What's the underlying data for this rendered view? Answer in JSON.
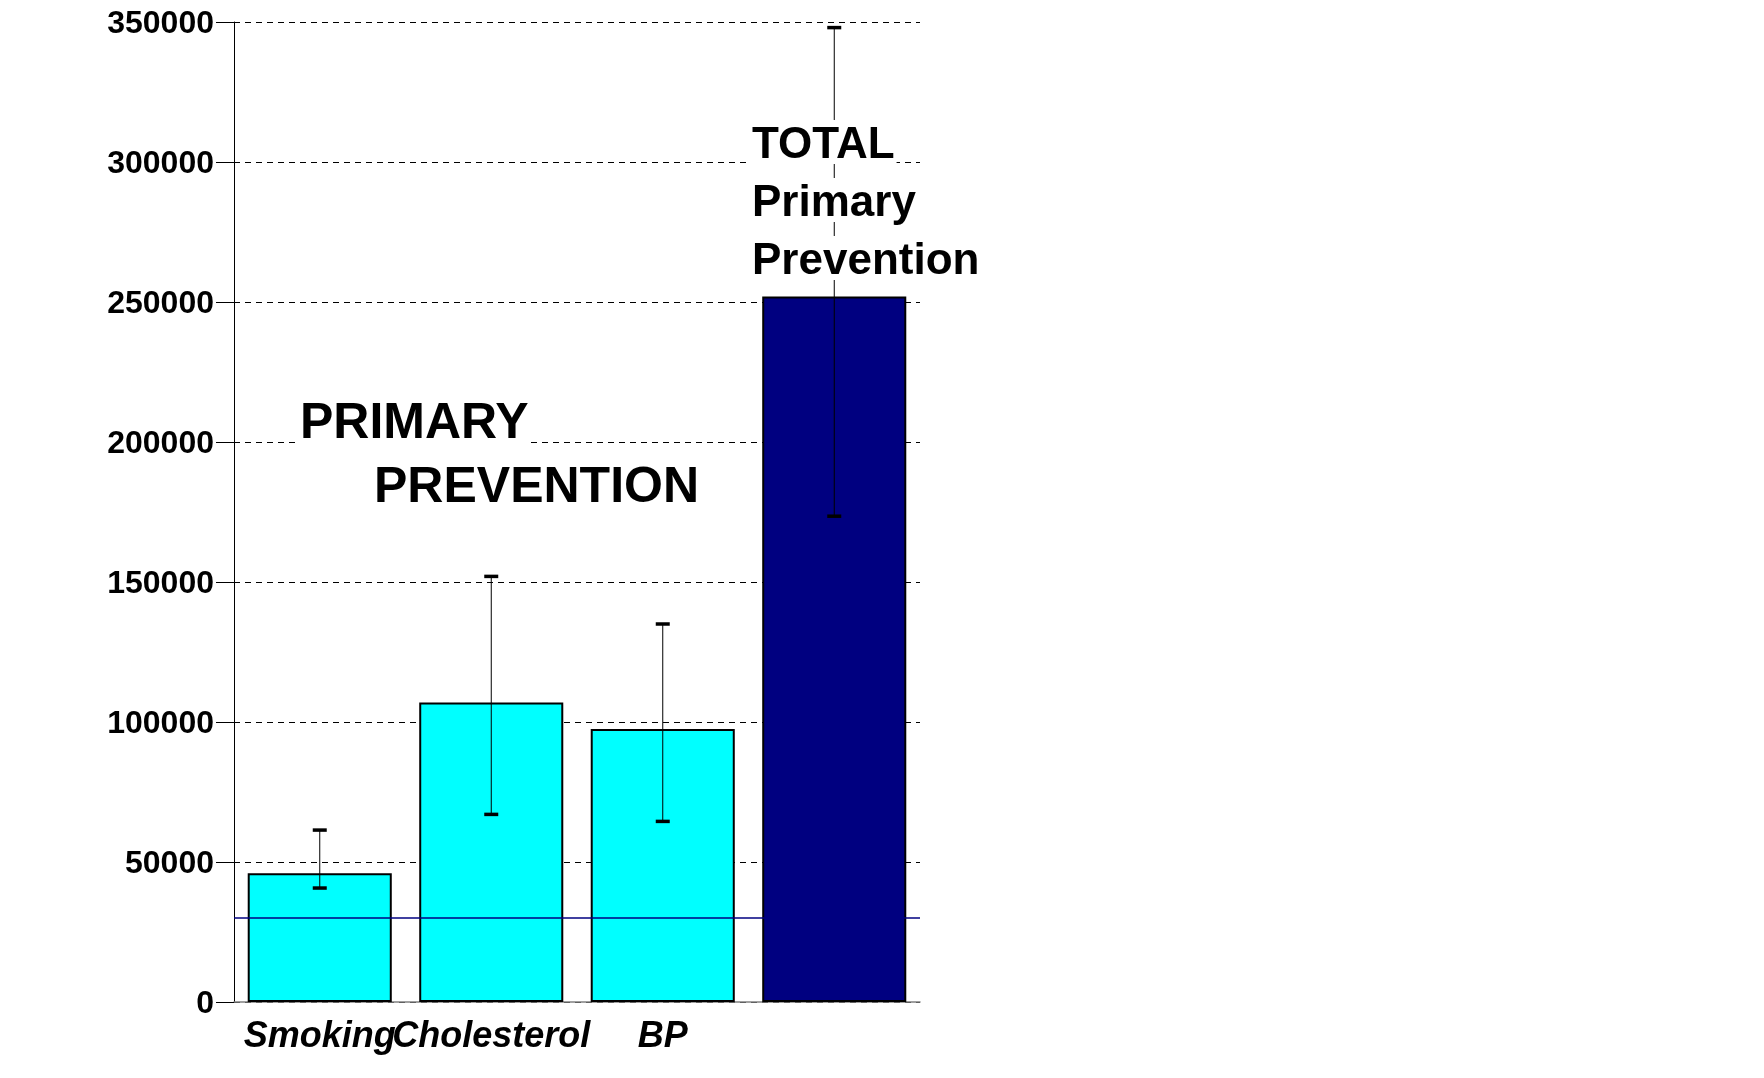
{
  "chart_data": {
    "type": "bar",
    "categories": [
      "Smoking",
      "Cholesterol",
      "BP",
      null
    ],
    "values": [
      46000,
      107000,
      97500,
      252000
    ],
    "colors": [
      "#00ffff",
      "#00ffff",
      "#00ffff",
      "#000080"
    ],
    "errors": [
      [
        40700,
        61400
      ],
      [
        67000,
        152000
      ],
      [
        64500,
        135000
      ],
      [
        173500,
        348000
      ]
    ],
    "ylim": [
      0,
      350000
    ],
    "yticks": [
      0,
      50000,
      100000,
      150000,
      200000,
      250000,
      300000,
      350000
    ],
    "grid": "y",
    "ref_lines": [
      {
        "axis": "y",
        "value": 30000,
        "color": "#000080"
      }
    ],
    "annotations": [
      "PRIMARY\nPREVENTION",
      "TOTAL\nPrimary\nPrevention"
    ]
  }
}
